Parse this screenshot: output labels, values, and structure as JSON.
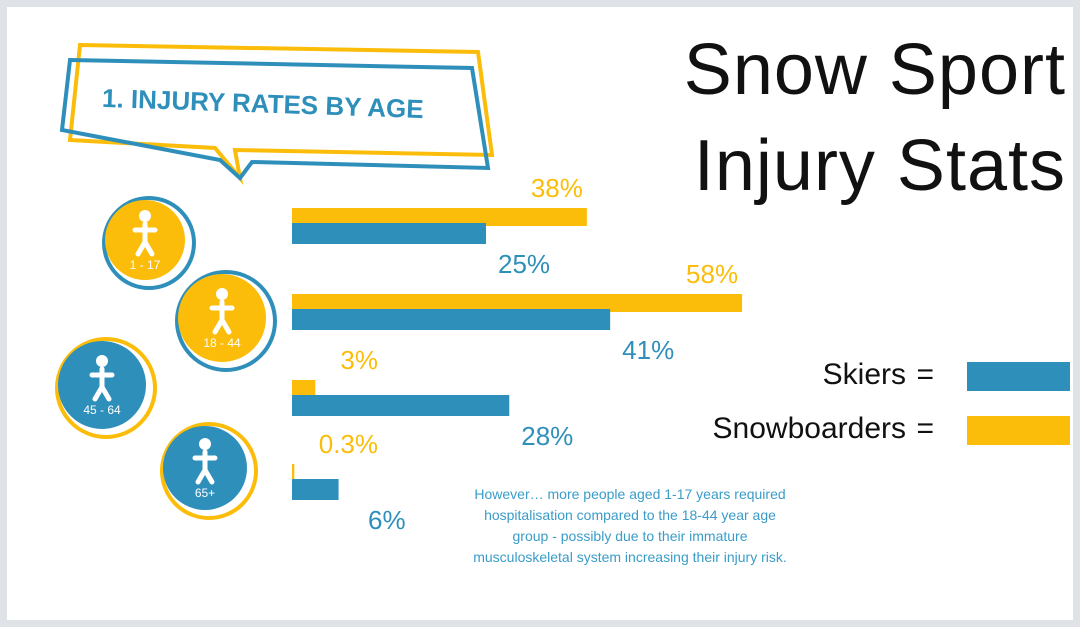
{
  "chart_data": {
    "type": "bar",
    "orientation": "horizontal",
    "title": "Snow Sport Injury Stats",
    "subtitle": "1. INJURY RATES BY AGE",
    "categories": [
      "1 - 17",
      "18 - 44",
      "45 - 64",
      "65+"
    ],
    "series": [
      {
        "name": "Skiers",
        "color": "#2f8fbb",
        "values": [
          25,
          41,
          28,
          6
        ],
        "value_labels": [
          "25%",
          "41%",
          "28%",
          "6%"
        ]
      },
      {
        "name": "Snowboarders",
        "color": "#fbbd0a",
        "values": [
          38,
          58,
          3,
          0.3
        ],
        "value_labels": [
          "38%",
          "58%",
          "3%",
          "0.3%"
        ]
      }
    ],
    "legend_separator": "=",
    "annotation": "However… more people aged 1-17 years required hospitalisation compared to the 18-44 year age group - possibly due to their immature musculoskeletal system increasing their injury risk."
  }
}
